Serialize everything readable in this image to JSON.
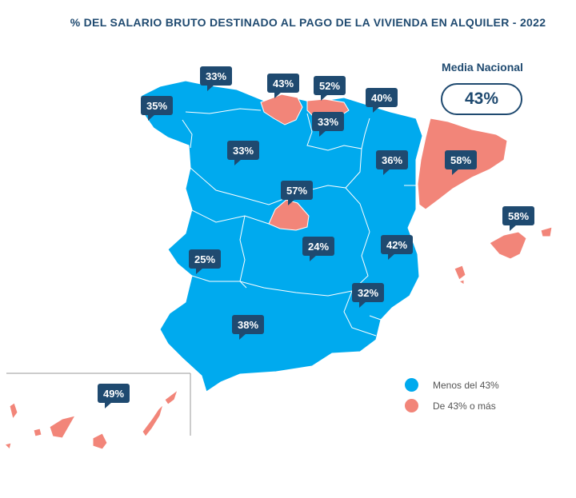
{
  "title": "% DEL SALARIO BRUTO DESTINADO AL PAGO DE LA VIVIENDA EN ALQUILER - 2022",
  "national_average": {
    "label": "Media Nacional",
    "value": "43%"
  },
  "colors": {
    "below": "#00aaee",
    "above": "#f28579",
    "callout": "#1f4a70",
    "border": "#ffffff"
  },
  "legend": [
    {
      "label": "Menos del 43%",
      "color": "#00aaee"
    },
    {
      "label": "De 43% o más",
      "color": "#f28579"
    }
  ],
  "regions": [
    {
      "name": "Galicia",
      "value": "35%",
      "category": "below"
    },
    {
      "name": "Asturias",
      "value": "33%",
      "category": "below"
    },
    {
      "name": "Cantabria",
      "value": "43%",
      "category": "above"
    },
    {
      "name": "País Vasco",
      "value": "52%",
      "category": "above"
    },
    {
      "name": "Navarra",
      "value": "40%",
      "category": "below"
    },
    {
      "name": "La Rioja",
      "value": "33%",
      "category": "below"
    },
    {
      "name": "Castilla y León",
      "value": "33%",
      "category": "below"
    },
    {
      "name": "Aragón",
      "value": "36%",
      "category": "below"
    },
    {
      "name": "Cataluña",
      "value": "58%",
      "category": "above"
    },
    {
      "name": "Madrid",
      "value": "57%",
      "category": "above"
    },
    {
      "name": "Illes Balears",
      "value": "58%",
      "category": "above"
    },
    {
      "name": "Extremadura",
      "value": "25%",
      "category": "below"
    },
    {
      "name": "Castilla-La Mancha",
      "value": "24%",
      "category": "below"
    },
    {
      "name": "Comunitat Valenciana",
      "value": "42%",
      "category": "below"
    },
    {
      "name": "Murcia",
      "value": "32%",
      "category": "below"
    },
    {
      "name": "Andalucía",
      "value": "38%",
      "category": "below"
    },
    {
      "name": "Canarias",
      "value": "49%",
      "category": "above"
    }
  ]
}
